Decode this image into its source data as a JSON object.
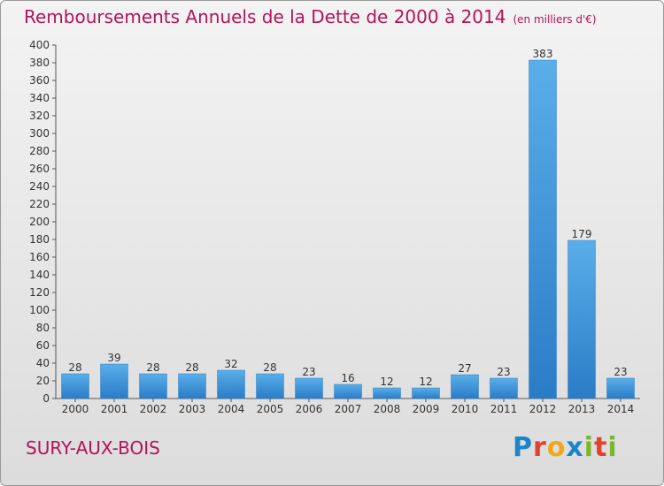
{
  "title": "Remboursements Annuels de la Dette de 2000 à 2014",
  "subtitle": "(en milliers d'€)",
  "commune": "SURY-AUX-BOIS",
  "logo": "Proxiti",
  "colors": {
    "title": "#b3135a",
    "bar_light": "#5aaee9",
    "bar_dark": "#2a7cc6"
  },
  "chart_data": {
    "type": "bar",
    "title": "Remboursements Annuels de la Dette de 2000 à 2014",
    "xlabel": "",
    "ylabel": "",
    "categories": [
      "2000",
      "2001",
      "2002",
      "2003",
      "2004",
      "2005",
      "2006",
      "2007",
      "2008",
      "2009",
      "2010",
      "2011",
      "2012",
      "2013",
      "2014"
    ],
    "values": [
      28,
      39,
      28,
      28,
      32,
      28,
      23,
      16,
      12,
      12,
      27,
      23,
      383,
      179,
      23
    ],
    "ylim": [
      0,
      400
    ],
    "yticks": [
      0,
      20,
      40,
      60,
      80,
      100,
      120,
      140,
      160,
      180,
      200,
      220,
      240,
      260,
      280,
      300,
      320,
      340,
      360,
      380,
      400
    ],
    "grid": false,
    "legend": "none"
  }
}
